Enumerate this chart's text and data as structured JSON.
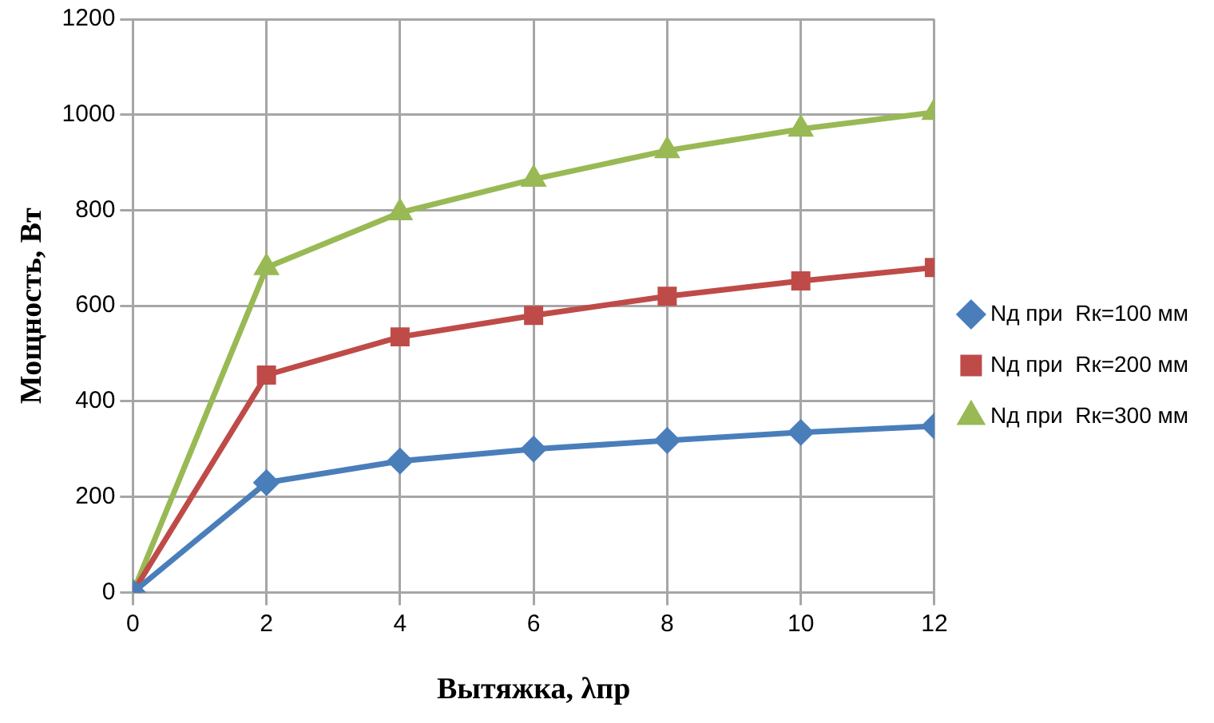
{
  "chart_data": {
    "type": "line",
    "xlabel": "Вытяжка, λпр",
    "ylabel": "Мощность, Вт",
    "x": [
      0,
      2,
      4,
      6,
      8,
      10,
      12
    ],
    "series": [
      {
        "name": "Nд при  Rк=100 мм",
        "color": "#4a7ebb",
        "marker": "diamond",
        "values": [
          0,
          230,
          275,
          300,
          318,
          335,
          348
        ]
      },
      {
        "name": "Nд при  Rк=200 мм",
        "color": "#be4b48",
        "marker": "square",
        "values": [
          0,
          455,
          535,
          580,
          620,
          652,
          680
        ]
      },
      {
        "name": "Nд при  Rк=300 мм",
        "color": "#98b954",
        "marker": "triangle",
        "values": [
          0,
          680,
          795,
          865,
          925,
          970,
          1005
        ]
      }
    ],
    "xlim": [
      0,
      12
    ],
    "xticks": [
      0,
      2,
      4,
      6,
      8,
      10,
      12
    ],
    "ylim": [
      0,
      1200
    ],
    "yticks": [
      0,
      200,
      400,
      600,
      800,
      1000,
      1200
    ],
    "grid": true,
    "legend": "right",
    "line_style": "solid"
  }
}
